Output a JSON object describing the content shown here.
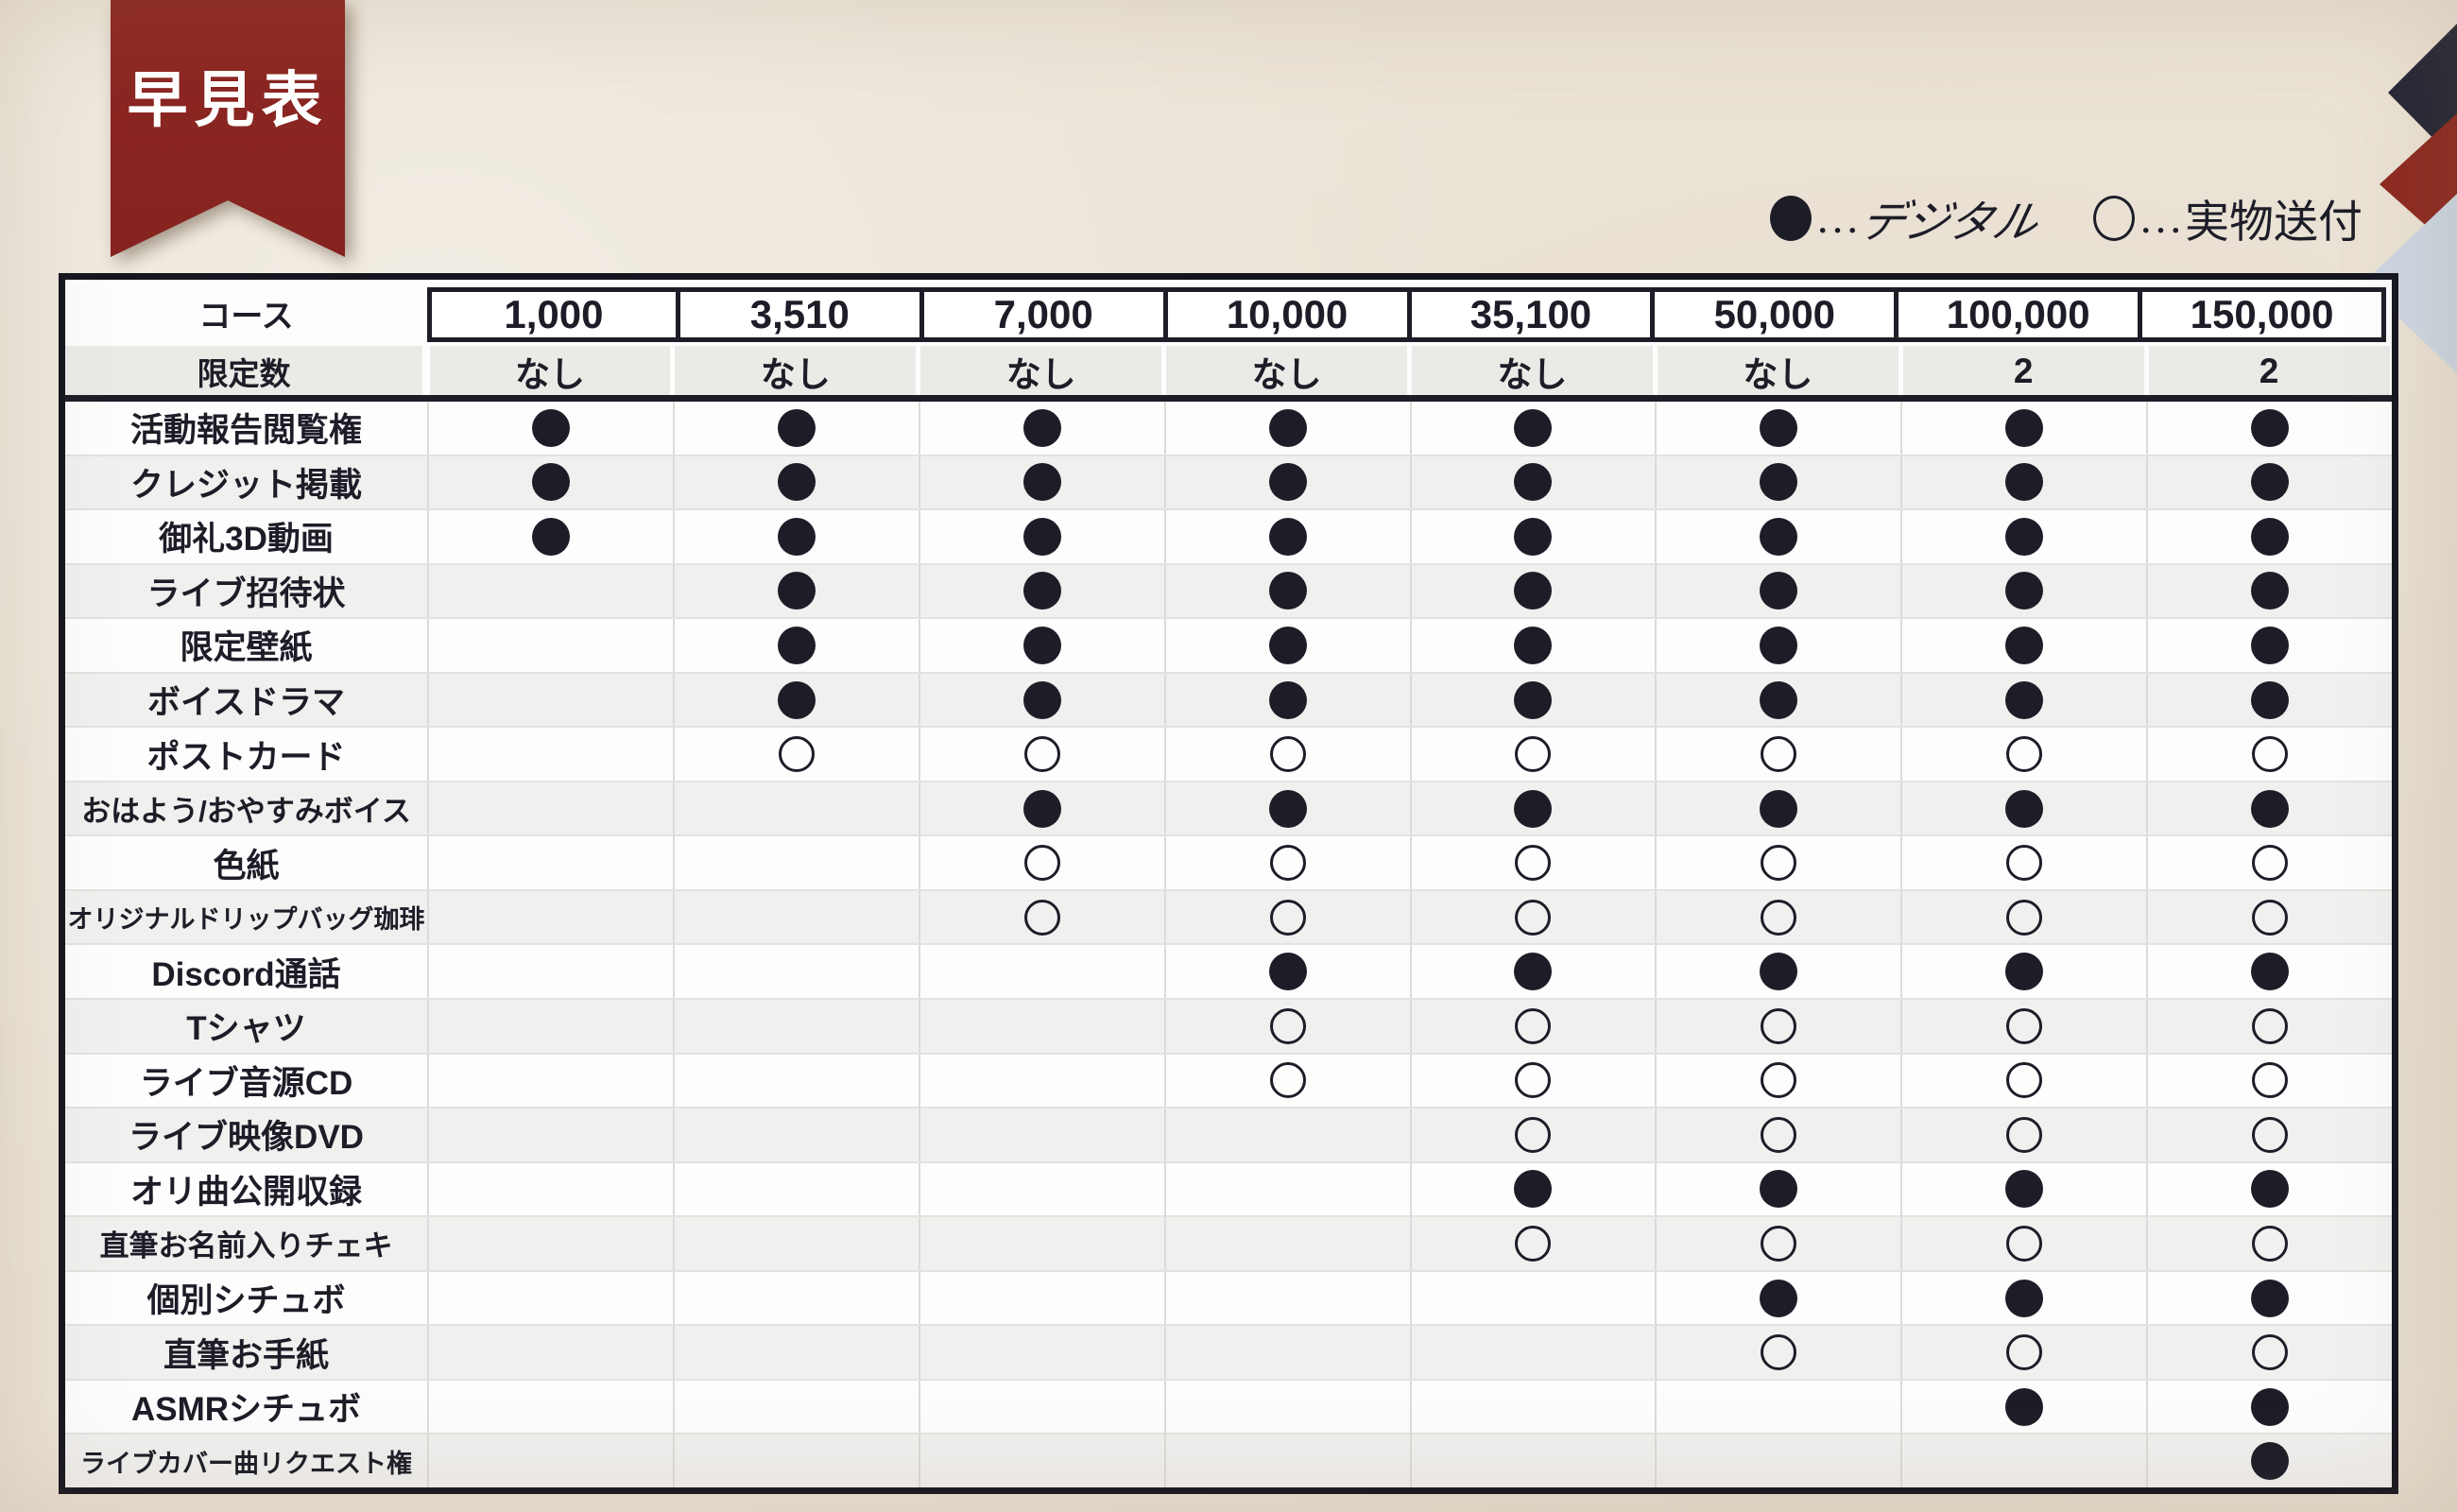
{
  "colors": {
    "ink": "#1d1d28",
    "paper": "#ebe3d6",
    "ribbon_red": "#8d2722",
    "row_alt_gray": "#f1f0ef",
    "limit_row_gray": "#eaeae7",
    "corner_navy": "#262635",
    "corner_red": "#8d2a21",
    "corner_blue": "#cdd7e2"
  },
  "chart_data": {
    "type": "table",
    "title": "早見表",
    "legend_items": [
      {
        "symbol": "●",
        "ellipsis": "…",
        "label": "デジタル"
      },
      {
        "symbol": "○",
        "ellipsis": "…",
        "label": "実物送付"
      }
    ],
    "corner_label": "コース",
    "limit_label": "限定数",
    "price_columns": [
      "1,000",
      "3,510",
      "7,000",
      "10,000",
      "35,100",
      "50,000",
      "100,000",
      "150,000"
    ],
    "limits": [
      "なし",
      "なし",
      "なし",
      "なし",
      "なし",
      "なし",
      "2",
      "2"
    ],
    "rows": [
      {
        "label": "活動報告閲覧権",
        "cells": [
          "filled",
          "filled",
          "filled",
          "filled",
          "filled",
          "filled",
          "filled",
          "filled"
        ]
      },
      {
        "label": "クレジット掲載",
        "cells": [
          "filled",
          "filled",
          "filled",
          "filled",
          "filled",
          "filled",
          "filled",
          "filled"
        ]
      },
      {
        "label": "御礼3D動画",
        "cells": [
          "filled",
          "filled",
          "filled",
          "filled",
          "filled",
          "filled",
          "filled",
          "filled"
        ]
      },
      {
        "label": "ライブ招待状",
        "cells": [
          "none",
          "filled",
          "filled",
          "filled",
          "filled",
          "filled",
          "filled",
          "filled"
        ]
      },
      {
        "label": "限定壁紙",
        "cells": [
          "none",
          "filled",
          "filled",
          "filled",
          "filled",
          "filled",
          "filled",
          "filled"
        ]
      },
      {
        "label": "ボイスドラマ",
        "cells": [
          "none",
          "filled",
          "filled",
          "filled",
          "filled",
          "filled",
          "filled",
          "filled"
        ]
      },
      {
        "label": "ポストカード",
        "cells": [
          "none",
          "open",
          "open",
          "open",
          "open",
          "open",
          "open",
          "open"
        ]
      },
      {
        "label": "おはよう/おやすみボイス",
        "cells": [
          "none",
          "none",
          "filled",
          "filled",
          "filled",
          "filled",
          "filled",
          "filled"
        ]
      },
      {
        "label": "色紙",
        "cells": [
          "none",
          "none",
          "open",
          "open",
          "open",
          "open",
          "open",
          "open"
        ]
      },
      {
        "label": "オリジナルドリップバッグ珈琲",
        "cells": [
          "none",
          "none",
          "open",
          "open",
          "open",
          "open",
          "open",
          "open"
        ]
      },
      {
        "label": "Discord通話",
        "cells": [
          "none",
          "none",
          "none",
          "filled",
          "filled",
          "filled",
          "filled",
          "filled"
        ]
      },
      {
        "label": "Tシャツ",
        "cells": [
          "none",
          "none",
          "none",
          "open",
          "open",
          "open",
          "open",
          "open"
        ]
      },
      {
        "label": "ライブ音源CD",
        "cells": [
          "none",
          "none",
          "none",
          "open",
          "open",
          "open",
          "open",
          "open"
        ]
      },
      {
        "label": "ライブ映像DVD",
        "cells": [
          "none",
          "none",
          "none",
          "none",
          "open",
          "open",
          "open",
          "open"
        ]
      },
      {
        "label": "オリ曲公開収録",
        "cells": [
          "none",
          "none",
          "none",
          "none",
          "filled",
          "filled",
          "filled",
          "filled"
        ]
      },
      {
        "label": "直筆お名前入りチェキ",
        "cells": [
          "none",
          "none",
          "none",
          "none",
          "open",
          "open",
          "open",
          "open"
        ]
      },
      {
        "label": "個別シチュボ",
        "cells": [
          "none",
          "none",
          "none",
          "none",
          "none",
          "filled",
          "filled",
          "filled"
        ]
      },
      {
        "label": "直筆お手紙",
        "cells": [
          "none",
          "none",
          "none",
          "none",
          "none",
          "open",
          "open",
          "open"
        ]
      },
      {
        "label": "ASMRシチュボ",
        "cells": [
          "none",
          "none",
          "none",
          "none",
          "none",
          "none",
          "filled",
          "filled"
        ]
      },
      {
        "label": "ライブカバー曲リクエスト権",
        "cells": [
          "none",
          "none",
          "none",
          "none",
          "none",
          "none",
          "none",
          "filled"
        ]
      }
    ]
  }
}
